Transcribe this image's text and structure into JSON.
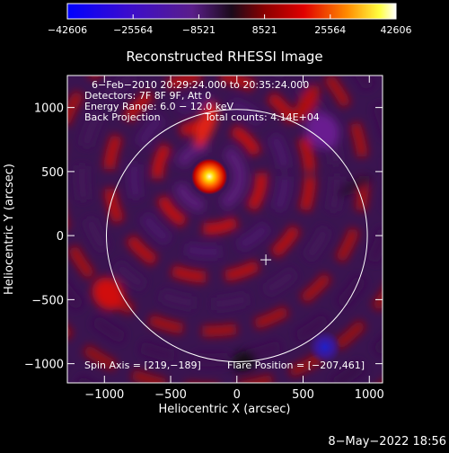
{
  "chart_data": {
    "type": "heatmap",
    "title": "Reconstructed RHESSI Image",
    "xlabel": "Heliocentric X (arcsec)",
    "ylabel": "Heliocentric Y (arcsec)",
    "xlim": [
      -1280,
      1100
    ],
    "ylim": [
      -1150,
      1250
    ],
    "xticks": [
      -1000,
      -500,
      0,
      500,
      1000
    ],
    "xtick_labels": [
      "−1000",
      "−500",
      "0",
      "500",
      "1000"
    ],
    "yticks": [
      -1000,
      -500,
      0,
      500,
      1000
    ],
    "ytick_labels": [
      "−1000",
      "−500",
      "0",
      "500",
      "1000"
    ],
    "colorbar": {
      "min": -42606,
      "max": 42606,
      "ticks": [
        -42606,
        -25564,
        -8521,
        8521,
        25564,
        42606
      ],
      "tick_labels": [
        "−42606",
        "−25564",
        "−8521",
        "8521",
        "25564",
        "42606"
      ]
    },
    "annotations": {
      "time_range": "6−Feb−2010 20:29:24.000 to 20:35:24.000",
      "detectors": "Detectors: 7F 8F 9F, Att 0",
      "energy": "Energy Range: 6.0 − 12.0 keV",
      "method": "Back Projection",
      "counts": "Total counts: 4.14E+04",
      "spin_axis": "Spin Axis = [219,−189]",
      "flare_position": "Flare Position = [−207,461]"
    },
    "solar_limb_radius": 985,
    "spin_axis": [
      219,
      -189
    ],
    "flare_position": [
      -207,
      461
    ],
    "negative_peak": [
      665,
      -870
    ],
    "grid": false
  },
  "footer": {
    "date": "8−May−2022 18:56"
  },
  "colors": {
    "background": "#000000",
    "axes": "#ffffff"
  }
}
